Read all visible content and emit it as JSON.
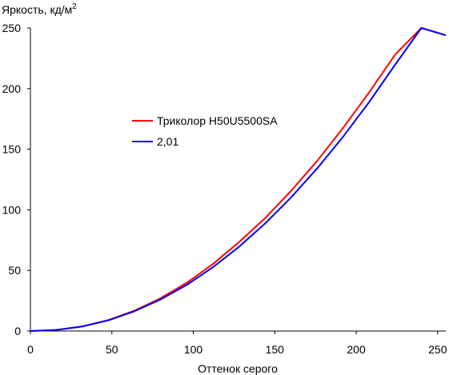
{
  "chart_data": {
    "type": "line",
    "title": "",
    "ylabel": "Яркость, кд/м",
    "ylabel_superscript": "2",
    "xlabel": "Оттенок серого",
    "xlim": [
      0,
      255
    ],
    "ylim": [
      0,
      250
    ],
    "xticks": [
      "0",
      "50",
      "100",
      "150",
      "200",
      "250"
    ],
    "yticks": [
      "0",
      "50",
      "100",
      "150",
      "200",
      "250"
    ],
    "grid": false,
    "legend_position": "center-left",
    "series": [
      {
        "name": "Триколор H50U5500SA",
        "color": "#ff0000",
        "x": [
          0,
          16,
          32,
          48,
          64,
          80,
          96,
          112,
          128,
          144,
          160,
          176,
          192,
          208,
          224,
          240,
          255
        ],
        "y": [
          0,
          0.9,
          3.8,
          9.1,
          16.9,
          27.1,
          39.8,
          55.2,
          73.3,
          93.0,
          115.6,
          140.3,
          167.6,
          197.0,
          228.2,
          263.0,
          244.0
        ]
      },
      {
        "name": "2,01",
        "color": "#0000ff",
        "x": [
          0,
          16,
          32,
          48,
          64,
          80,
          96,
          112,
          128,
          144,
          160,
          176,
          192,
          208,
          224,
          240,
          255
        ],
        "y": [
          0,
          0.9,
          3.8,
          8.9,
          16.4,
          26.1,
          38.1,
          52.6,
          69.4,
          88.6,
          110.2,
          134.1,
          160.4,
          189.0,
          219.9,
          253.2,
          244.0
        ]
      }
    ]
  }
}
